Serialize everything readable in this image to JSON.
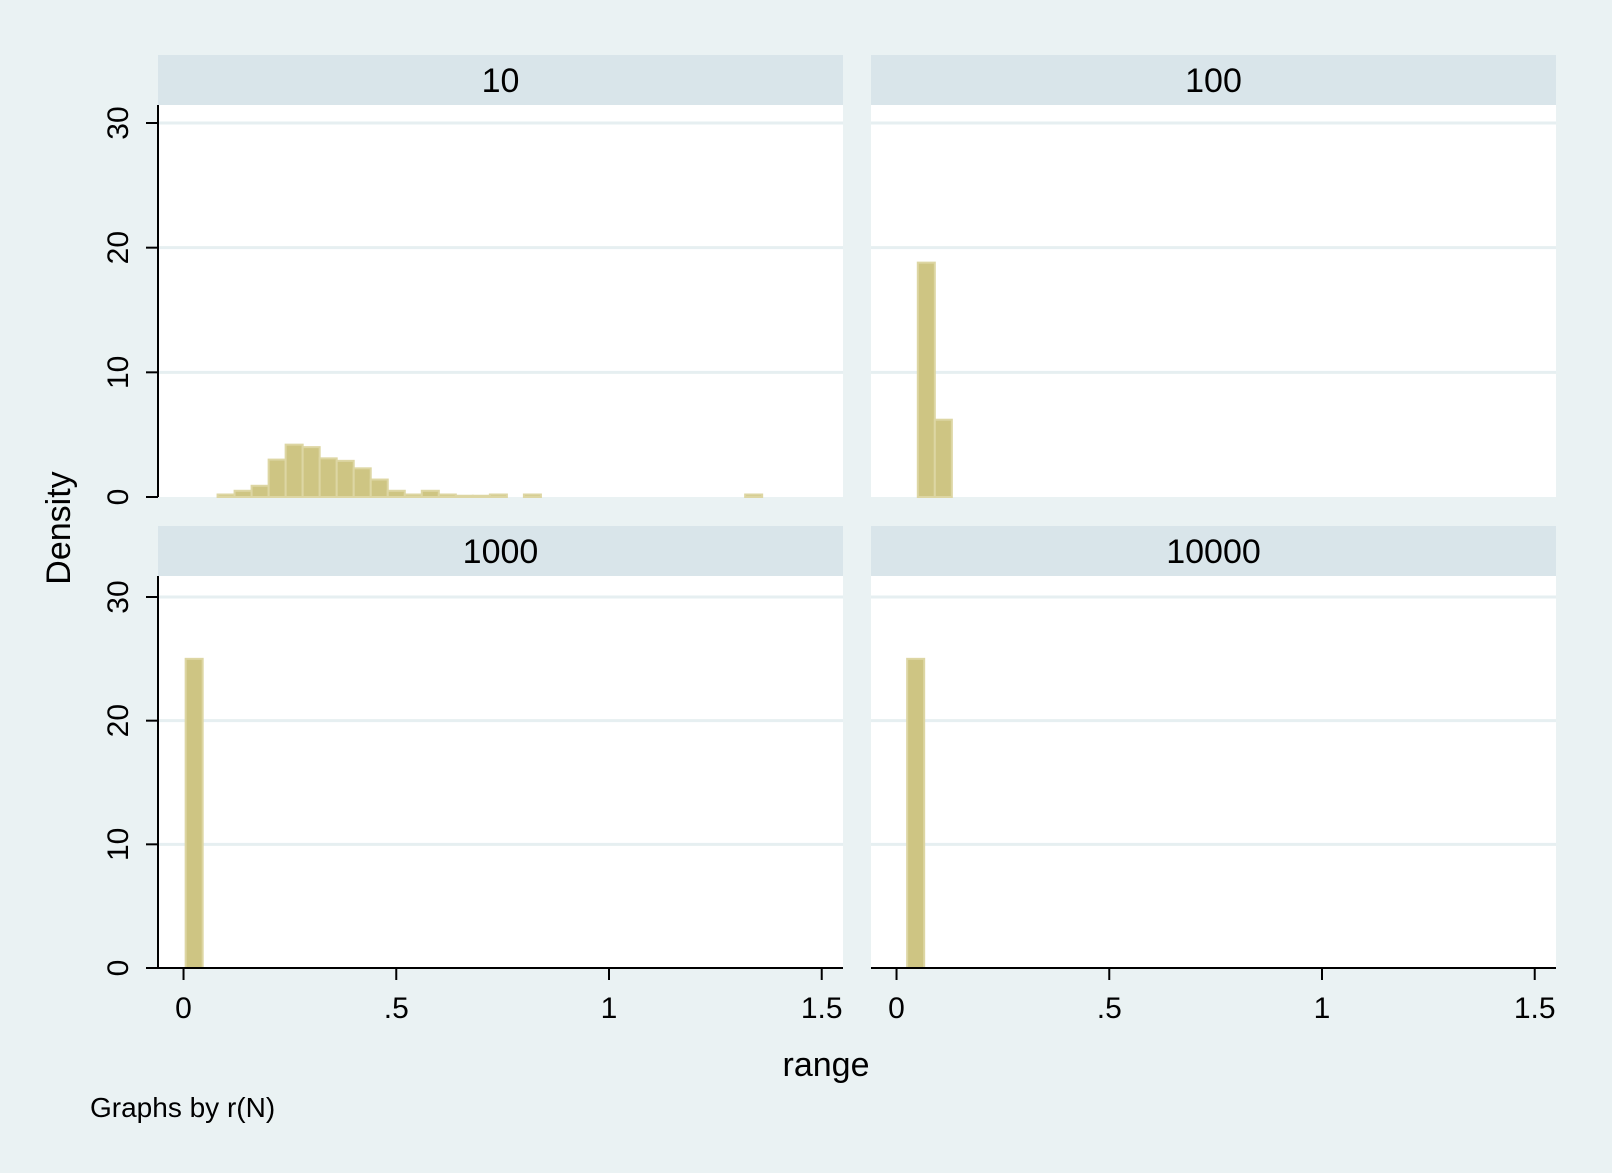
{
  "chart_data": {
    "type": "bar",
    "ylabel": "Density",
    "xlabel": "range",
    "note": "Graphs by r(N)",
    "xlim": [
      -0.06,
      1.55
    ],
    "ylim": [
      0,
      30
    ],
    "xticks": [
      0,
      0.5,
      1,
      1.5
    ],
    "xtick_labels": [
      "0",
      ".5",
      "1",
      "1.5"
    ],
    "yticks": [
      0,
      10,
      20,
      30
    ],
    "ytick_labels": [
      "0",
      "10",
      "20",
      "30"
    ],
    "grid": true,
    "colors": {
      "bar": "#cec583",
      "bar_edge": "#ddd6a3",
      "strip": "#d9e5ea",
      "plot_bg": "#ffffff",
      "outer_bg": "#eaf2f3",
      "grid": "#e6eff1"
    },
    "bin_width": 0.04,
    "panels": [
      {
        "title": "10",
        "bars": [
          {
            "x": 0.1,
            "y": 0.2
          },
          {
            "x": 0.14,
            "y": 0.5
          },
          {
            "x": 0.18,
            "y": 0.9
          },
          {
            "x": 0.22,
            "y": 3.0
          },
          {
            "x": 0.26,
            "y": 4.2
          },
          {
            "x": 0.3,
            "y": 4.0
          },
          {
            "x": 0.34,
            "y": 3.1
          },
          {
            "x": 0.38,
            "y": 2.9
          },
          {
            "x": 0.42,
            "y": 2.3
          },
          {
            "x": 0.46,
            "y": 1.4
          },
          {
            "x": 0.5,
            "y": 0.5
          },
          {
            "x": 0.54,
            "y": 0.2
          },
          {
            "x": 0.58,
            "y": 0.5
          },
          {
            "x": 0.62,
            "y": 0.2
          },
          {
            "x": 0.66,
            "y": 0.1
          },
          {
            "x": 0.7,
            "y": 0.1
          },
          {
            "x": 0.74,
            "y": 0.2
          },
          {
            "x": 0.82,
            "y": 0.2
          },
          {
            "x": 1.34,
            "y": 0.2
          }
        ]
      },
      {
        "title": "100",
        "bars": [
          {
            "x": 0.07,
            "y": 18.8
          },
          {
            "x": 0.11,
            "y": 6.2
          }
        ]
      },
      {
        "title": "1000",
        "bars": [
          {
            "x": 0.025,
            "y": 25.0
          }
        ]
      },
      {
        "title": "10000",
        "bars": [
          {
            "x": 0.045,
            "y": 25.0
          }
        ]
      }
    ]
  }
}
